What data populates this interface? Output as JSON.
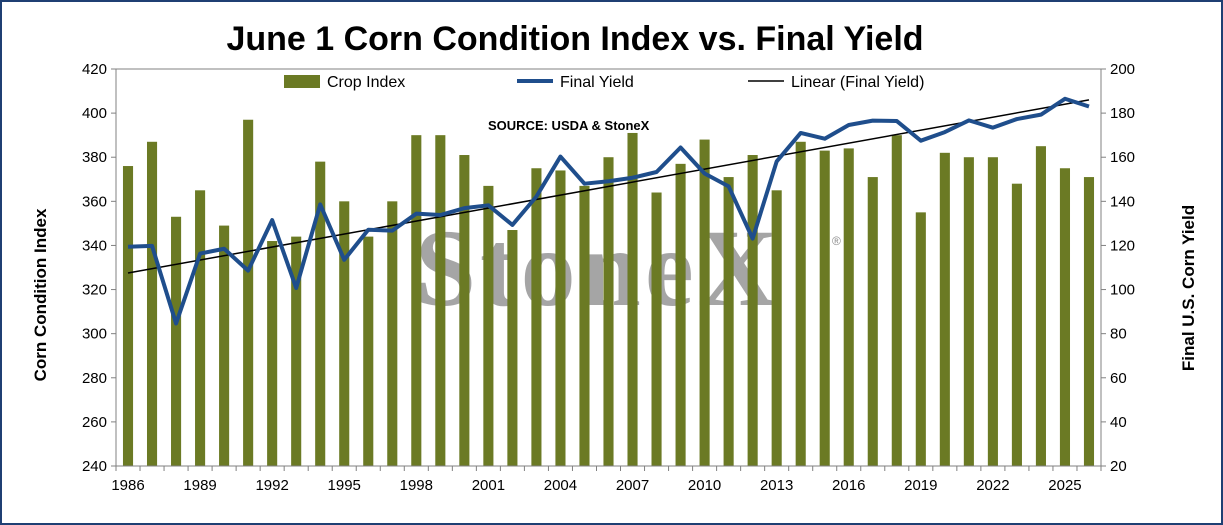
{
  "chart_data": {
    "type": "bar",
    "title": "June 1 Corn Condition Index vs. Final Yield",
    "ylabel": "Corn Condition Index",
    "y2label": "Final U.S. Corn Yield",
    "source": "SOURCE: USDA & StoneX",
    "watermark": "StoneX",
    "watermark_mark": "®",
    "ylim": [
      240,
      420
    ],
    "y2lim": [
      20,
      200
    ],
    "yticks": [
      240,
      260,
      280,
      300,
      320,
      340,
      360,
      380,
      400,
      420
    ],
    "y2ticks": [
      20,
      40,
      60,
      80,
      100,
      120,
      140,
      160,
      180,
      200
    ],
    "xticks": [
      "1986",
      "1989",
      "1992",
      "1995",
      "1998",
      "2001",
      "2004",
      "2007",
      "2010",
      "2013",
      "2016",
      "2019",
      "2022",
      "2025"
    ],
    "legend_position": "top",
    "grid": false,
    "years": [
      1986,
      1987,
      1988,
      1989,
      1990,
      1991,
      1992,
      1993,
      1994,
      1995,
      1996,
      1997,
      1998,
      1999,
      2000,
      2001,
      2002,
      2003,
      2004,
      2005,
      2006,
      2007,
      2008,
      2009,
      2010,
      2011,
      2012,
      2013,
      2014,
      2015,
      2016,
      2017,
      2018,
      2019,
      2020,
      2021,
      2022,
      2023,
      2024,
      2025,
      2026
    ],
    "series": [
      {
        "name": "Crop Index",
        "kind": "bar",
        "color": "#6b7a24",
        "values": [
          376,
          387,
          353,
          365,
          349,
          397,
          342,
          344,
          378,
          360,
          344,
          360,
          390,
          390,
          381,
          367,
          347,
          375,
          374,
          367,
          380,
          391,
          364,
          377,
          388,
          371,
          381,
          365,
          387,
          383,
          384,
          371,
          390,
          355,
          382,
          380,
          380,
          368,
          385,
          375,
          371
        ]
      },
      {
        "name": "Final Yield",
        "kind": "line",
        "color": "#1f4e8c",
        "values": [
          119.4,
          119.8,
          84.6,
          116.3,
          118.5,
          108.6,
          131.5,
          100.7,
          138.6,
          113.5,
          127.1,
          126.7,
          134.4,
          133.8,
          136.9,
          138.2,
          129.3,
          142.2,
          160.3,
          148.0,
          149.1,
          150.7,
          153.3,
          164.4,
          152.6,
          146.8,
          123.1,
          158.1,
          171.0,
          168.4,
          174.6,
          176.6,
          176.4,
          167.5,
          171.4,
          176.7,
          173.4,
          177.3,
          179.3,
          186.5,
          183.0
        ]
      },
      {
        "name": "Linear (Final Yield)",
        "kind": "trend",
        "color": "#000000",
        "values": [
          107.5,
          186.0
        ]
      }
    ]
  }
}
